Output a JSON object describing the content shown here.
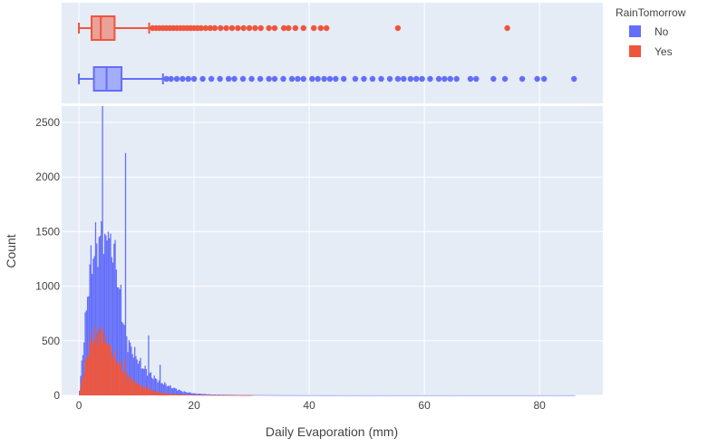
{
  "chart_data": {
    "type": "histogram",
    "xlabel": "Daily Evaporation (mm)",
    "ylabel": "Count",
    "xlim": [
      -3,
      91
    ],
    "ylim": [
      0,
      2650
    ],
    "x_ticks": [
      0,
      20,
      40,
      60,
      80
    ],
    "y_ticks": [
      0,
      500,
      1000,
      1500,
      2000,
      2500
    ],
    "grid": true,
    "legend": {
      "title": "RainTomorrow",
      "placement": "top-right"
    },
    "bin_width": 0.2,
    "series": [
      {
        "name": "No",
        "color": "#636efa",
        "histogram_profile": [
          [
            0,
            40
          ],
          [
            0.4,
            300
          ],
          [
            1,
            650
          ],
          [
            1.6,
            1050
          ],
          [
            2,
            1200
          ],
          [
            2.6,
            1350
          ],
          [
            3,
            1380
          ],
          [
            3.6,
            1420
          ],
          [
            4,
            1400
          ],
          [
            4.6,
            1420
          ],
          [
            5,
            1350
          ],
          [
            5.6,
            1320
          ],
          [
            6,
            1250
          ],
          [
            6.6,
            1100
          ],
          [
            7,
            950
          ],
          [
            7.6,
            700
          ],
          [
            8,
            540
          ],
          [
            9,
            430
          ],
          [
            10,
            340
          ],
          [
            11,
            260
          ],
          [
            12,
            210
          ],
          [
            13,
            160
          ],
          [
            14,
            125
          ],
          [
            15,
            100
          ],
          [
            16,
            75
          ],
          [
            17,
            55
          ],
          [
            18,
            35
          ],
          [
            20,
            18
          ],
          [
            23,
            8
          ],
          [
            28,
            4
          ],
          [
            35,
            2
          ],
          [
            45,
            1
          ],
          [
            60,
            1
          ],
          [
            70,
            1
          ],
          [
            86,
            1
          ]
        ],
        "spikes": [
          [
            4,
            2650
          ],
          [
            4.4,
            1480
          ],
          [
            8,
            2220
          ],
          [
            5,
            1500
          ],
          [
            6,
            1390
          ],
          [
            12,
            550
          ],
          [
            14,
            280
          ]
        ],
        "box": {
          "min": 0,
          "q1": 2.6,
          "median": 4.8,
          "q3": 7.4,
          "upper_fence": 14.6
        },
        "outliers": [
          15.2,
          16,
          17,
          18,
          19,
          20,
          21.5,
          23,
          24.5,
          26,
          27,
          28.5,
          30,
          31.5,
          33,
          34,
          35.5,
          37,
          38,
          39,
          40.5,
          41.5,
          42.6,
          43.6,
          44.6,
          46,
          48,
          49.5,
          51,
          52.5,
          54,
          55.4,
          56.4,
          57.6,
          58.6,
          59.6,
          61,
          62.5,
          63.5,
          64.5,
          65.6,
          68,
          69,
          72,
          74,
          77,
          79.6,
          80.8,
          86
        ]
      },
      {
        "name": "Yes",
        "color": "#ef553b",
        "histogram_profile": [
          [
            0,
            20
          ],
          [
            0.4,
            130
          ],
          [
            1,
            280
          ],
          [
            1.6,
            420
          ],
          [
            2,
            500
          ],
          [
            2.6,
            540
          ],
          [
            3,
            560
          ],
          [
            3.6,
            550
          ],
          [
            4,
            530
          ],
          [
            4.6,
            480
          ],
          [
            5,
            440
          ],
          [
            5.6,
            400
          ],
          [
            6,
            360
          ],
          [
            6.6,
            320
          ],
          [
            7,
            280
          ],
          [
            8,
            200
          ],
          [
            9,
            150
          ],
          [
            10,
            110
          ],
          [
            11,
            80
          ],
          [
            12,
            55
          ],
          [
            13,
            40
          ],
          [
            14,
            28
          ],
          [
            15,
            18
          ],
          [
            17,
            9
          ],
          [
            20,
            4
          ],
          [
            25,
            2
          ],
          [
            30,
            1
          ]
        ],
        "spikes": [
          [
            3.4,
            610
          ],
          [
            4,
            620
          ],
          [
            5,
            470
          ],
          [
            8,
            330
          ],
          [
            12,
            90
          ]
        ],
        "box": {
          "min": 0,
          "q1": 2.2,
          "median": 3.8,
          "q3": 6.2,
          "upper_fence": 12.2
        },
        "outliers": [
          12.8,
          13.4,
          14,
          14.6,
          15.2,
          15.8,
          16.4,
          17,
          17.6,
          18.2,
          18.8,
          19.4,
          20,
          20.6,
          21.2,
          22,
          22.8,
          23.6,
          24.6,
          25.6,
          26.6,
          27.6,
          28.6,
          29.6,
          30.6,
          31.6,
          33,
          34,
          35.6,
          36.4,
          37.6,
          39,
          40.8,
          42,
          43,
          55.4,
          74.4
        ]
      }
    ]
  }
}
